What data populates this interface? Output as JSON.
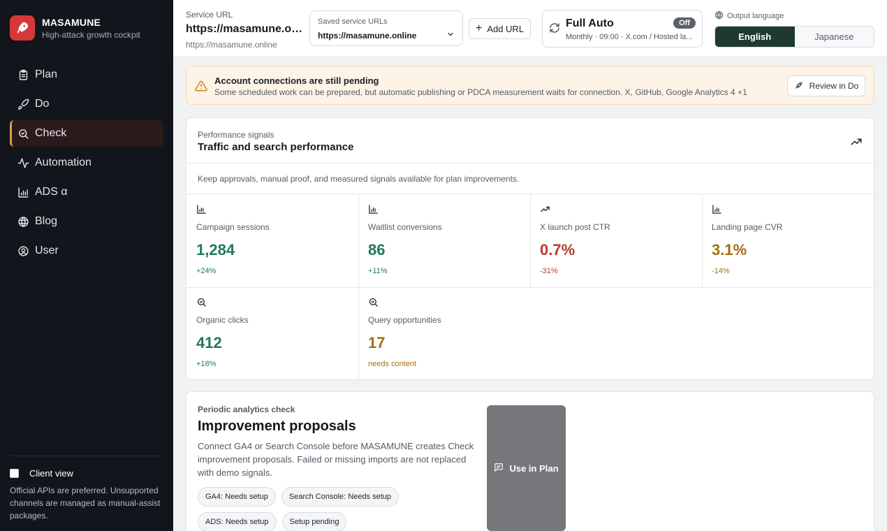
{
  "brand": {
    "name": "MASAMUNE",
    "tagline": "High-attack growth cockpit"
  },
  "nav": [
    {
      "key": "plan",
      "label": "Plan",
      "icon": "clipboard-icon",
      "active": false
    },
    {
      "key": "do",
      "label": "Do",
      "icon": "rocket-icon",
      "active": false
    },
    {
      "key": "check",
      "label": "Check",
      "icon": "search-icon",
      "active": true
    },
    {
      "key": "automation",
      "label": "Automation",
      "icon": "activity-icon",
      "active": false
    },
    {
      "key": "ads",
      "label": "ADS α",
      "icon": "bar-chart-icon",
      "active": false
    },
    {
      "key": "blog",
      "label": "Blog",
      "icon": "globe-icon",
      "active": false
    },
    {
      "key": "user",
      "label": "User",
      "icon": "user-circle-icon",
      "active": false
    }
  ],
  "client_view": {
    "label": "Client view",
    "checked": false,
    "description": "Official APIs are preferred. Unsupported channels are managed as manual-assist packages."
  },
  "header": {
    "service_label": "Service URL",
    "service_url": "https://masamune.onl...",
    "service_sub": "https://masamune.online",
    "saved_label": "Saved service URLs",
    "saved_value": "https://masamune.online",
    "add_url_label": "Add URL",
    "auto_title": "Full Auto",
    "auto_badge": "Off",
    "auto_sub": "Monthly · 09:00 · X.com / Hosted la...",
    "lang_label": "Output language",
    "lang_options": [
      "English",
      "Japanese"
    ],
    "lang_selected": "English"
  },
  "alert": {
    "title": "Account connections are still pending",
    "description": "Some scheduled work can be prepared, but automatic publishing or PDCA measurement waits for connection. X, GitHub, Google Analytics 4 +1",
    "button": "Review in Do"
  },
  "performance": {
    "eyebrow": "Performance signals",
    "title": "Traffic and search performance",
    "note": "Keep approvals, manual proof, and measured signals available for plan improvements.",
    "metrics": [
      {
        "label": "Campaign sessions",
        "value": "1,284",
        "delta": "+24%",
        "tone": "green",
        "icon": "bar-chart-icon"
      },
      {
        "label": "Waitlist conversions",
        "value": "86",
        "delta": "+11%",
        "tone": "green",
        "icon": "bar-chart-icon"
      },
      {
        "label": "X launch post CTR",
        "value": "0.7%",
        "delta": "-31%",
        "tone": "red",
        "icon": "trending-up-icon"
      },
      {
        "label": "Landing page CVR",
        "value": "3.1%",
        "delta": "-14%",
        "tone": "amber",
        "icon": "bar-chart-icon"
      },
      {
        "label": "Organic clicks",
        "value": "412",
        "delta": "+18%",
        "tone": "green",
        "icon": "search-icon"
      },
      {
        "label": "Query opportunities",
        "value": "17",
        "delta": "needs content",
        "tone": "amber",
        "icon": "search-icon"
      }
    ]
  },
  "proposals": {
    "eyebrow": "Periodic analytics check",
    "title": "Improvement proposals",
    "description": "Connect GA4 or Search Console before MASAMUNE creates Check improvement proposals. Failed or missing imports are not replaced with demo signals.",
    "chips": [
      "GA4: Needs setup",
      "Search Console: Needs setup",
      "ADS: Needs setup",
      "Setup pending"
    ],
    "button": "Use in Plan"
  }
}
